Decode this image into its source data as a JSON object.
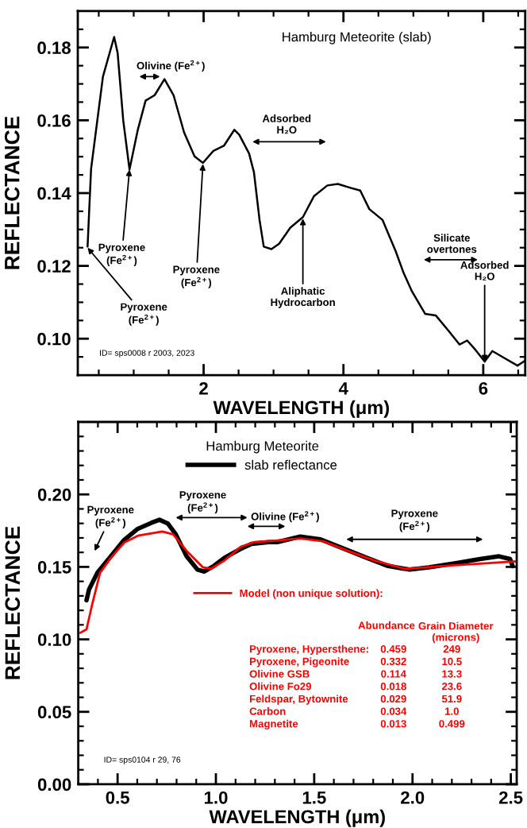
{
  "chart_data": [
    {
      "type": "line",
      "title": "Hamburg Meteorite (slab)",
      "xlabel": "WAVELENGTH (μm)",
      "ylabel": "REFLECTANCE",
      "xlim": [
        0.2,
        6.6
      ],
      "ylim": [
        0.09,
        0.19
      ],
      "xticks": [
        {
          "value": 0.5,
          "label": null
        },
        {
          "value": 1.0,
          "label": null
        },
        {
          "value": 1.5,
          "label": null
        },
        2,
        {
          "value": 2.5,
          "label": null
        },
        {
          "value": 3.0,
          "label": null
        },
        {
          "value": 3.5,
          "label": null
        },
        4,
        {
          "value": 4.5,
          "label": null
        },
        {
          "value": 5.0,
          "label": null
        },
        {
          "value": 5.5,
          "label": null
        },
        6,
        {
          "value": 6.5,
          "label": null
        }
      ],
      "yticks": [
        {
          "value": 0.095,
          "label": null
        },
        {
          "value": 0.1,
          "label": "0.10"
        },
        {
          "value": 0.105,
          "label": null
        },
        {
          "value": 0.11,
          "label": null
        },
        {
          "value": 0.115,
          "label": null
        },
        0.12,
        {
          "value": 0.125,
          "label": null
        },
        {
          "value": 0.13,
          "label": null
        },
        {
          "value": 0.135,
          "label": null
        },
        0.14,
        {
          "value": 0.145,
          "label": null
        },
        {
          "value": 0.15,
          "label": null
        },
        {
          "value": 0.155,
          "label": null
        },
        0.16,
        {
          "value": 0.165,
          "label": null
        },
        {
          "value": 0.17,
          "label": null
        },
        {
          "value": 0.175,
          "label": null
        },
        0.18,
        {
          "value": 0.185,
          "label": null
        }
      ],
      "series": [
        {
          "color": "#000000",
          "x": [
            0.34,
            0.39,
            0.56,
            0.72,
            0.77,
            0.85,
            0.94,
            1.06,
            1.17,
            1.3,
            1.44,
            1.57,
            1.72,
            1.87,
            1.99,
            2.14,
            2.29,
            2.44,
            2.51,
            2.65,
            2.72,
            2.8,
            2.86,
            2.97,
            3.08,
            3.24,
            3.42,
            3.58,
            3.77,
            3.92,
            4.11,
            4.24,
            4.37,
            4.56,
            4.75,
            4.86,
            4.98,
            5.17,
            5.32,
            5.51,
            5.66,
            5.77,
            5.89,
            6.02,
            6.13,
            6.3,
            6.49,
            6.6
          ],
          "values": [
            0.1253,
            0.1466,
            0.172,
            0.1829,
            0.1785,
            0.16,
            0.1465,
            0.1575,
            0.1654,
            0.1669,
            0.1713,
            0.1669,
            0.1567,
            0.1501,
            0.1483,
            0.1516,
            0.153,
            0.1574,
            0.156,
            0.1509,
            0.1457,
            0.1326,
            0.1253,
            0.1246,
            0.1261,
            0.1305,
            0.1334,
            0.1392,
            0.1421,
            0.1425,
            0.1414,
            0.1407,
            0.1356,
            0.1326,
            0.1239,
            0.1181,
            0.113,
            0.1068,
            0.1064,
            0.102,
            0.0984,
            0.0995,
            0.0969,
            0.0937,
            0.0966,
            0.0947,
            0.0926,
            0.094
          ]
        }
      ],
      "annotations": [
        "Olivine (Fe$^{2+}$)",
        {
          "text": "Pyroxene\n(Fe$^{2+}$)",
          "x": 0.94,
          "y": 0.1465
        },
        {
          "text": "Pyroxene\n(Fe$^{2+}$)",
          "x": 1.99,
          "y": 0.148
        },
        {
          "text": "Pyroxene\n(Fe$^{2+}$)",
          "x": 0.34,
          "y": 0.125
        },
        "Adsorbed\nH₂O",
        {
          "text": "Aliphatic\nHydrocarbon",
          "x": 3.42,
          "y": 0.133
        },
        "Silicate\novertones",
        {
          "text": "Adsorbed\nH₂O",
          "x": 6.02,
          "y": 0.0937
        },
        "ID= sps0008 r 2003, 2023"
      ]
    },
    {
      "type": "line",
      "xlabel": "WAVELENGTH (μm)",
      "ylabel": "REFLECTANCE",
      "xlim": [
        0.3,
        2.53
      ],
      "ylim": [
        0,
        0.25
      ],
      "legend": "top",
      "legend_title": "Hamburg Meteorite",
      "xticks": [
        {
          "value": 0.4,
          "label": null
        },
        0.5,
        {
          "value": 0.6,
          "label": null
        },
        {
          "value": 0.7,
          "label": null
        },
        {
          "value": 0.8,
          "label": null
        },
        {
          "value": 0.9,
          "label": null
        },
        {
          "value": 1.0,
          "label": "1.0"
        },
        {
          "value": 1.1,
          "label": null
        },
        {
          "value": 1.2,
          "label": null
        },
        {
          "value": 1.3,
          "label": null
        },
        {
          "value": 1.4,
          "label": null
        },
        1.5,
        {
          "value": 1.6,
          "label": null
        },
        {
          "value": 1.7,
          "label": null
        },
        {
          "value": 1.8,
          "label": null
        },
        {
          "value": 1.9,
          "label": null
        },
        {
          "value": 2.0,
          "label": "2.0"
        },
        {
          "value": 2.1,
          "label": null
        },
        {
          "value": 2.2,
          "label": null
        },
        {
          "value": 2.3,
          "label": null
        },
        {
          "value": 2.4,
          "label": null
        },
        2.5
      ],
      "yticks": [
        {
          "value": 0,
          "label": "0.00"
        },
        {
          "value": 0.01,
          "label": null
        },
        {
          "value": 0.02,
          "label": null
        },
        {
          "value": 0.03,
          "label": null
        },
        {
          "value": 0.04,
          "label": null
        },
        0.05,
        {
          "value": 0.06,
          "label": null
        },
        {
          "value": 0.07,
          "label": null
        },
        {
          "value": 0.08,
          "label": null
        },
        {
          "value": 0.09,
          "label": null
        },
        {
          "value": 0.1,
          "label": "0.10"
        },
        {
          "value": 0.11,
          "label": null
        },
        {
          "value": 0.12,
          "label": null
        },
        {
          "value": 0.13,
          "label": null
        },
        {
          "value": 0.14,
          "label": null
        },
        0.15,
        {
          "value": 0.16,
          "label": null
        },
        {
          "value": 0.17,
          "label": null
        },
        {
          "value": 0.18,
          "label": null
        },
        {
          "value": 0.19,
          "label": null
        },
        {
          "value": 0.2,
          "label": "0.20"
        },
        {
          "value": 0.21,
          "label": null
        },
        {
          "value": 0.22,
          "label": null
        },
        {
          "value": 0.23,
          "label": null
        },
        {
          "value": 0.24,
          "label": null
        }
      ],
      "series": [
        {
          "name": "slab reflectance",
          "color": "#000000",
          "x": [
            0.342,
            0.355,
            0.397,
            0.466,
            0.534,
            0.603,
            0.672,
            0.713,
            0.755,
            0.796,
            0.851,
            0.906,
            0.94,
            0.989,
            1.044,
            1.126,
            1.181,
            1.268,
            1.312,
            1.429,
            1.532,
            1.642,
            1.766,
            1.876,
            1.986,
            2.083,
            2.22,
            2.344,
            2.44,
            2.496,
            2.509
          ],
          "values": [
            0.127,
            0.1345,
            0.1459,
            0.1573,
            0.1687,
            0.1763,
            0.1804,
            0.1825,
            0.18,
            0.1725,
            0.1573,
            0.1481,
            0.1468,
            0.1506,
            0.1563,
            0.1624,
            0.1658,
            0.1671,
            0.1671,
            0.1709,
            0.169,
            0.163,
            0.1563,
            0.1506,
            0.1481,
            0.1497,
            0.1525,
            0.1554,
            0.1573,
            0.1554,
            0.1506
          ]
        },
        {
          "name": "Model (non unique solution):",
          "color": "#ff0000",
          "x": [
            0.31,
            0.342,
            0.369,
            0.411,
            0.466,
            0.534,
            0.603,
            0.727,
            0.782,
            0.851,
            0.934,
            0.975,
            1.044,
            1.126,
            1.195,
            1.312,
            1.429,
            1.546,
            1.67,
            1.807,
            1.959,
            2.151,
            2.53
          ],
          "values": [
            0.1045,
            0.1069,
            0.1231,
            0.1459,
            0.1563,
            0.1668,
            0.1715,
            0.1744,
            0.1725,
            0.1611,
            0.1497,
            0.1487,
            0.1544,
            0.1639,
            0.1671,
            0.1683,
            0.1696,
            0.1677,
            0.1611,
            0.1544,
            0.1487,
            0.1506,
            0.1538
          ]
        }
      ],
      "annotations": [
        "Pyroxene\n(Fe$^{2+}$)",
        "Pyroxene\n(Fe$^{2+}$)",
        "Olivine (Fe$^{2+}$)",
        "Pyroxene\n(Fe$^{2+}$)",
        "Abundance",
        "Grain Diameter\n(microns)",
        "Pyroxene, Hypersthene:",
        "0.459",
        "249",
        "Pyroxene, Pigeonite",
        "0.332",
        "10.5",
        "Olivine GSB",
        "0.114",
        "13.3",
        "Olivine Fo29",
        "0.018",
        "23.6",
        "Feldspar, Bytownite",
        "0.029",
        "51.9",
        "Carbon",
        "0.034",
        "1.0",
        "Magnetite",
        "0.013",
        "0.499",
        "ID= sps0104 r 29, 76"
      ]
    }
  ]
}
